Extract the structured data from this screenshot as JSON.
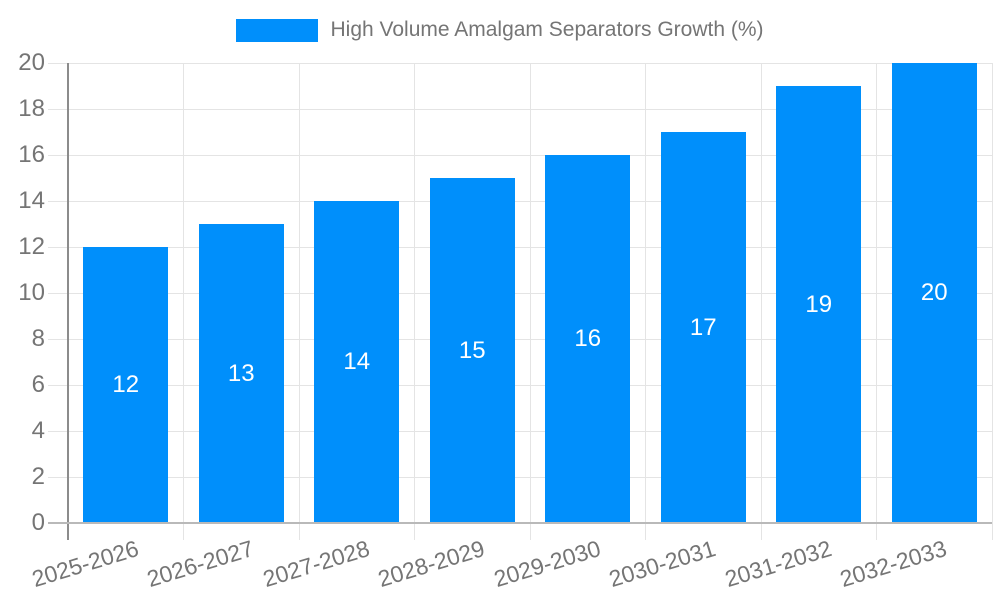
{
  "legend": {
    "label": "High Volume Amalgam Separators Growth (%)"
  },
  "chart_data": {
    "type": "bar",
    "title": "High Volume Amalgam Separators Growth (%)",
    "categories": [
      "2025-2026",
      "2026-2027",
      "2027-2028",
      "2028-2029",
      "2029-2030",
      "2030-2031",
      "2031-2032",
      "2032-2033"
    ],
    "values": [
      12,
      13,
      14,
      15,
      16,
      17,
      19,
      20
    ],
    "xlabel": "",
    "ylabel": "",
    "ylim": [
      0,
      20
    ],
    "ytick_step": 2,
    "ytick_labels": [
      "0",
      "2",
      "4",
      "6",
      "8",
      "10",
      "12",
      "14",
      "16",
      "18",
      "20"
    ],
    "grid": "both",
    "legend_position": "top-center",
    "data_labels": "inside-center-white",
    "xtick_rotation_deg": -17
  },
  "colors": {
    "bar": "#008FFB",
    "grid": "#e4e4e4",
    "y_axis_line": "#8c8c8c",
    "x_axis_line": "#b9b9b9",
    "label_text": "#757575",
    "data_label_text": "#ffffff",
    "background": "#ffffff"
  }
}
